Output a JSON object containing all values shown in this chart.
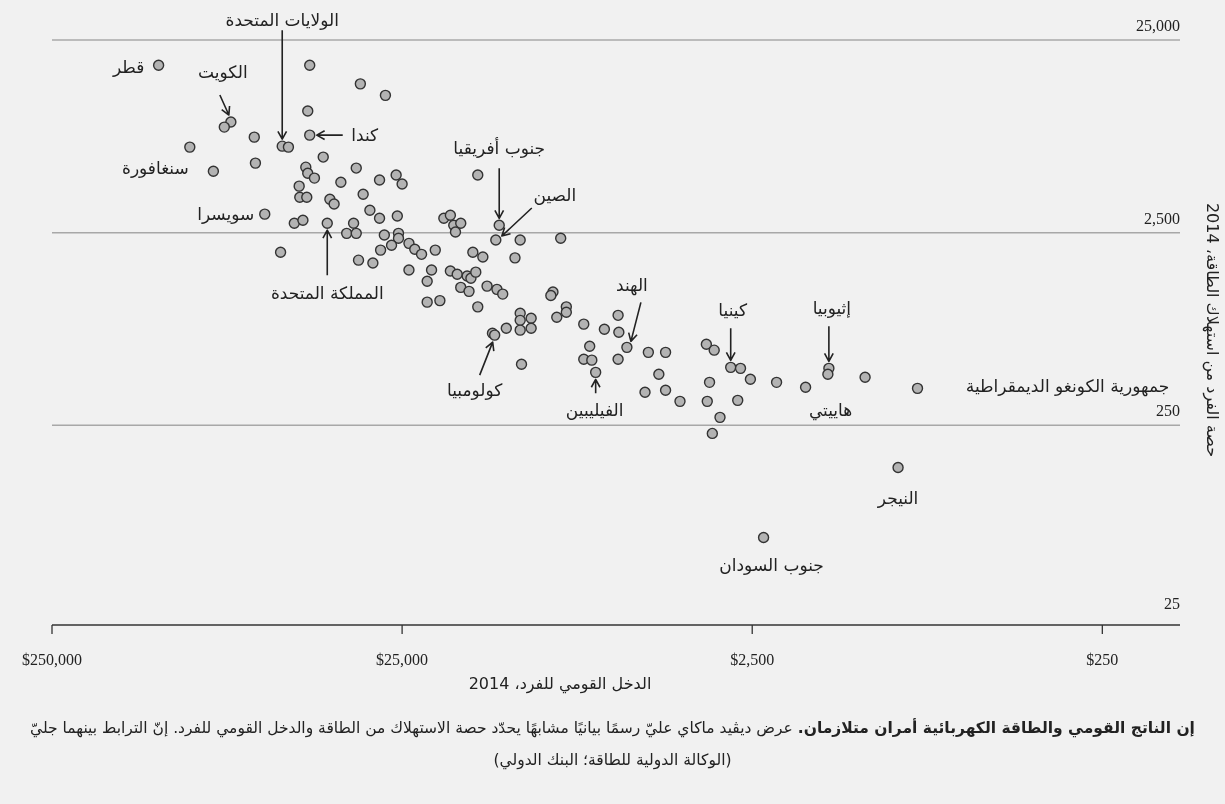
{
  "chart_data": {
    "type": "scatter",
    "title": "إن الناتج القومي والطاقة الكهربائية أمران متلازمان.",
    "subtitle": "عرض ديڤيد ماكاي عليّ رسمًا بيانيًا مشابهًا يحدّد حصة الاستهلاك من الطاقة والدخل القومي للفرد. إنّ الترابط بينهما جليّ (الوكالة الدولية للطاقة؛ البنك الدولي)",
    "xlabel": "الدخل القومي للفرد، 2014",
    "ylabel": "حصة الفرد من استهلاك الطاقة، 2014",
    "log": "xy",
    "grid": "y",
    "marker": "circle",
    "color": "#b3b3b3",
    "xlim": [
      250000,
      150
    ],
    "ylim": [
      23,
      25000
    ],
    "xticks": [
      {
        "value": 250000,
        "label": "$250,000"
      },
      {
        "value": 25000,
        "label": "$25,000"
      },
      {
        "value": 2500,
        "label": "$2,500"
      },
      {
        "value": 250,
        "label": "$250"
      }
    ],
    "yticks": [
      {
        "value": 25,
        "label": "25"
      },
      {
        "value": 250,
        "label": "250"
      },
      {
        "value": 2500,
        "label": "2,500"
      },
      {
        "value": 25000,
        "label": "25,000"
      }
    ],
    "x": [
      124000,
      45900,
      32900,
      27900,
      46500,
      77100,
      80500,
      66100,
      45900,
      55000,
      52800,
      101000,
      42000,
      65600,
      86500,
      47100,
      46500,
      44500,
      33800,
      29000,
      26000,
      25000,
      37400,
      49200,
      32300,
      49000,
      46800,
      40200,
      39100,
      30900,
      29000,
      25800,
      61700,
      50800,
      48000,
      40900,
      34400,
      36000,
      33800,
      28100,
      25600,
      25600,
      23900,
      23000,
      22000,
      20100,
      19000,
      18200,
      17800,
      17000,
      17600,
      28800,
      26800,
      55600,
      33300,
      30300,
      23900,
      20600,
      21200,
      18200,
      17400,
      17000,
      15200,
      13200,
      13500,
      11500,
      8810,
      11900,
      16300,
      15900,
      15400,
      15700,
      14700,
      16100,
      14300,
      13400,
      12900,
      21200,
      19500,
      15200,
      9270,
      9400,
      8490,
      8490,
      9040,
      11500,
      11500,
      10700,
      10700,
      11500,
      12600,
      13800,
      13600,
      11400,
      7570,
      6610,
      6040,
      6010,
      7280,
      7570,
      7180,
      7000,
      5700,
      6040,
      4950,
      4420,
      4620,
      5060,
      4420,
      4020,
      3380,
      3210,
      2880,
      2700,
      2530,
      3310,
      2130,
      1760,
      1510,
      1520,
      1190,
      843,
      3360,
      2750,
      3090,
      3250,
      958,
      2320
    ],
    "values": [
      18500,
      18500,
      14800,
      12900,
      10700,
      9380,
      8830,
      7830,
      8020,
      7030,
      6950,
      6950,
      6170,
      5740,
      5210,
      5470,
      5090,
      4800,
      5410,
      4690,
      4980,
      4470,
      4570,
      4360,
      3960,
      3820,
      3820,
      3730,
      3520,
      3270,
      2970,
      3050,
      3120,
      2800,
      2900,
      2800,
      2800,
      2480,
      2480,
      2430,
      2480,
      2340,
      2200,
      2050,
      1930,
      2030,
      2970,
      3080,
      2730,
      2800,
      2520,
      2030,
      2150,
      1980,
      1800,
      1740,
      1600,
      1600,
      1400,
      1580,
      1520,
      1300,
      4980,
      2730,
      2290,
      2290,
      2340,
      1850,
      1490,
      1450,
      1560,
      1980,
      1870,
      1240,
      1320,
      1270,
      1200,
      1090,
      1110,
      1030,
      1230,
      1180,
      1030,
      966,
      910,
      955,
      877,
      899,
      798,
      780,
      798,
      752,
      735,
      519,
      838,
      789,
      931,
      760,
      643,
      551,
      545,
      471,
      635,
      551,
      598,
      598,
      460,
      371,
      380,
      333,
      659,
      614,
      500,
      494,
      434,
      418,
      418,
      394,
      494,
      460,
      444,
      389,
      333,
      337,
      275,
      227,
      151,
      65.5
    ],
    "annotations": [
      {
        "text": "قطر",
        "x": 124000,
        "y": 18500
      },
      {
        "text": "الكويت",
        "x": 77100,
        "y": 9380
      },
      {
        "text": "الولايات المتحدة",
        "x": 55000,
        "y": 7030
      },
      {
        "text": "كندا",
        "x": 45900,
        "y": 8020
      },
      {
        "text": "سنغافورة",
        "x": 86500,
        "y": 5210
      },
      {
        "text": "سويسرا",
        "x": 61700,
        "y": 3120
      },
      {
        "text": "المملكة المتحدة",
        "x": 40900,
        "y": 2800
      },
      {
        "text": "جنوب أفريقيا",
        "x": 13200,
        "y": 2730
      },
      {
        "text": "الصين",
        "x": 13500,
        "y": 2290
      },
      {
        "text": "الهند",
        "x": 5700,
        "y": 635
      },
      {
        "text": "كولومبيا",
        "x": 13600,
        "y": 735
      },
      {
        "text": "الفيليبين",
        "x": 7000,
        "y": 471
      },
      {
        "text": "كينيا",
        "x": 2880,
        "y": 500
      },
      {
        "text": "إثيوبيا",
        "x": 1510,
        "y": 494
      },
      {
        "text": "هاييتي",
        "x": 1760,
        "y": 394
      },
      {
        "text": "جمهورية الكونغو الديمقراطية",
        "x": 843,
        "y": 389
      },
      {
        "text": "النيجر",
        "x": 958,
        "y": 151
      },
      {
        "text": "جنوب السودان",
        "x": 2320,
        "y": 65.5
      }
    ]
  }
}
